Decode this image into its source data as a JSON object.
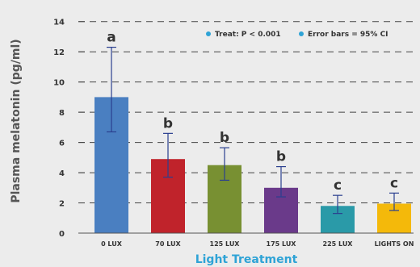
{
  "chart_data": {
    "type": "bar",
    "categories": [
      "0 LUX",
      "70 LUX",
      "125 LUX",
      "175 LUX",
      "225 LUX",
      "LIGHTS ON"
    ],
    "values": [
      9.0,
      4.9,
      4.5,
      3.0,
      1.8,
      1.95
    ],
    "error_low": [
      6.7,
      3.7,
      3.5,
      2.4,
      1.3,
      1.5
    ],
    "error_high": [
      12.3,
      6.6,
      5.65,
      4.4,
      2.5,
      2.65
    ],
    "significance": [
      "a",
      "b",
      "b",
      "b",
      "c",
      "c"
    ],
    "colors": [
      "#4a7fc1",
      "#c0232b",
      "#789032",
      "#6a3a8a",
      "#2a9aa8",
      "#f4b90a"
    ],
    "xlabel": "Light Treatment",
    "ylabel": "Plasma melatonin (pg/ml)",
    "ylim": [
      0,
      15
    ],
    "yticks": [
      0,
      2,
      4,
      6,
      8,
      10,
      12,
      14
    ],
    "grid": true,
    "legend_position": "top-right",
    "legend": [
      "Treat: P < 0.001",
      "Error bars = 95% CI"
    ],
    "legend_color": "#2ea3d6",
    "xlabel_color": "#2ea3d6"
  }
}
